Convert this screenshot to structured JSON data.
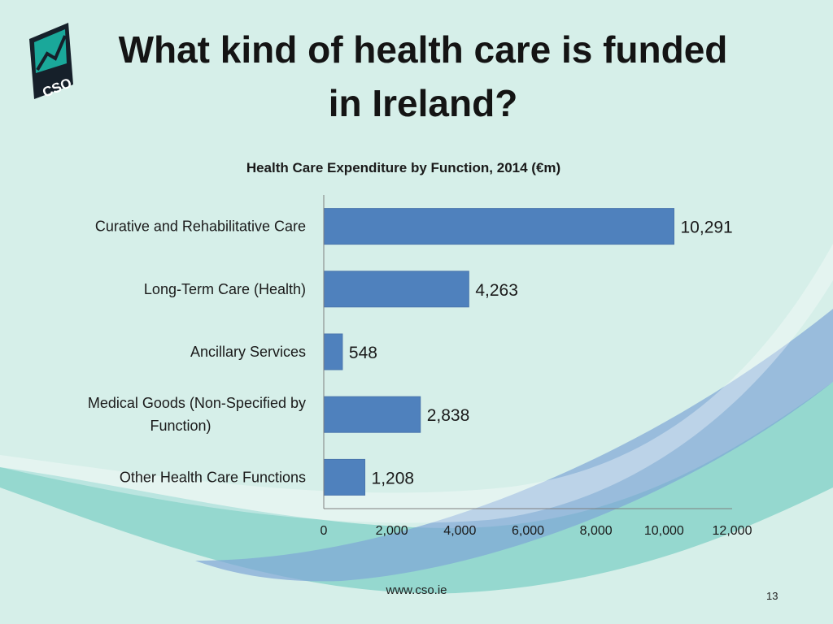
{
  "slide": {
    "title_line1": "What kind of health care is funded",
    "title_line2": "in Ireland?",
    "footer_url": "www.cso.ie",
    "page_number": "13",
    "logo_text": "CSO"
  },
  "colors": {
    "background": "#d6efe9",
    "bar": "#4f81bd",
    "wave_teal": "#6cc8bd",
    "wave_blue": "#6f9fd1",
    "logo_teal": "#1aa89a",
    "logo_dark": "#16202a"
  },
  "chart_data": {
    "type": "bar",
    "orientation": "horizontal",
    "title": "Health Care Expenditure by Function, 2014 (€m)",
    "categories": [
      [
        "Curative and Rehabilitative Care"
      ],
      [
        "Long-Term Care (Health)"
      ],
      [
        "Ancillary Services"
      ],
      [
        "Medical Goods (Non-Specified by",
        "Function)"
      ],
      [
        "Other Health Care Functions"
      ]
    ],
    "values": [
      10291,
      4263,
      548,
      2838,
      1208
    ],
    "value_labels": [
      "10,291",
      "4,263",
      "548",
      "2,838",
      "1,208"
    ],
    "xlim": [
      0,
      12000
    ],
    "xticks": [
      0,
      2000,
      4000,
      6000,
      8000,
      10000,
      12000
    ],
    "xtick_labels": [
      "0",
      "2,000",
      "4,000",
      "6,000",
      "8,000",
      "10,000",
      "12,000"
    ],
    "grid": false,
    "legend": "none"
  }
}
